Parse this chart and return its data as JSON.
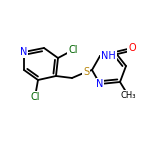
{
  "bg_color": "#ffffff",
  "bond_color": "#000000",
  "atom_colors": {
    "N": "#0000ff",
    "O": "#ff0000",
    "S": "#b8860b",
    "Cl": "#006400",
    "C": "#000000"
  },
  "bond_width": 1.3,
  "font_size_atom": 7.0,
  "font_size_small": 6.5
}
